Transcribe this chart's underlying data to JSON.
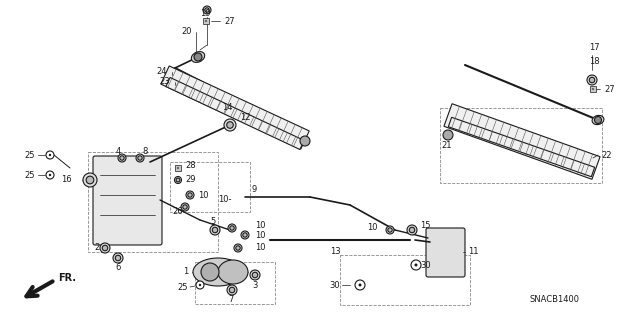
{
  "diagram_code": "SNACB1400",
  "bg_color": "#ffffff",
  "lc": "#1a1a1a",
  "figsize": [
    6.4,
    3.19
  ],
  "dpi": 100,
  "xlim": [
    0,
    640
  ],
  "ylim": [
    0,
    319
  ]
}
